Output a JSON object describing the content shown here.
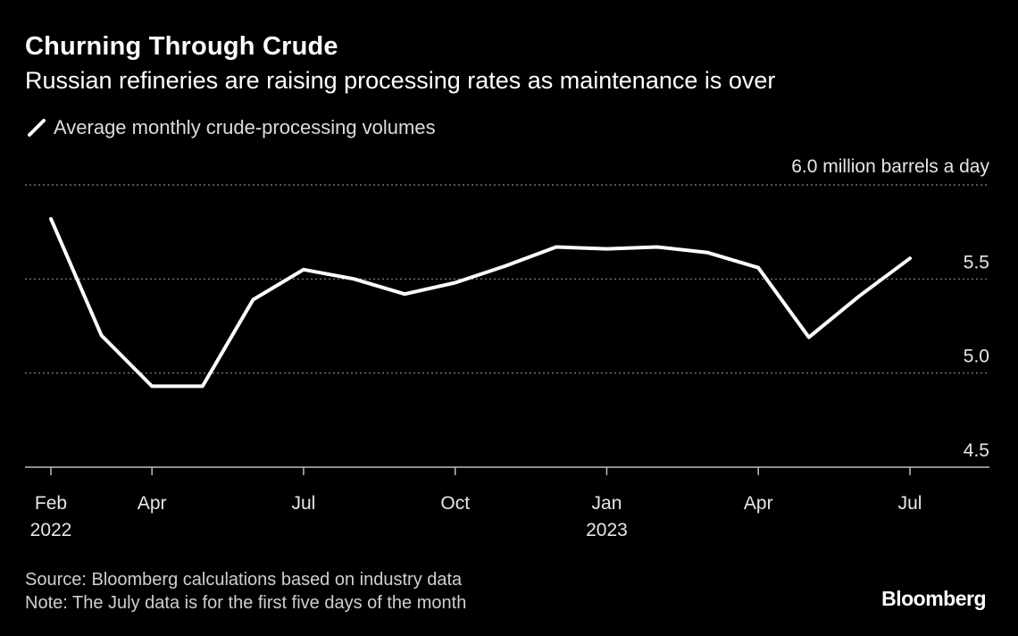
{
  "chart_data": {
    "type": "line",
    "title": "Churning Through Crude",
    "subtitle": "Russian refineries are raising processing rates as maintenance is over",
    "legend": {
      "label": "Average monthly crude-processing volumes",
      "placement": "top-left"
    },
    "y_unit_label": "million barrels a day",
    "ylim": [
      4.5,
      6.0
    ],
    "y_ticks": [
      4.5,
      5.0,
      5.5,
      6.0
    ],
    "y_tick_labels": [
      "4.5",
      "5.0",
      "5.5",
      "6.0"
    ],
    "grid": true,
    "series": [
      {
        "values": [
          5.82,
          5.2,
          4.93,
          4.93,
          5.39,
          5.55,
          5.5,
          5.42,
          5.48,
          5.57,
          5.67,
          5.66,
          5.67,
          5.64,
          5.56,
          5.19,
          5.41,
          5.61
        ],
        "color": "#ffffff"
      }
    ],
    "x": [
      "2022-02",
      "2022-03",
      "2022-04",
      "2022-05",
      "2022-06",
      "2022-07",
      "2022-08",
      "2022-09",
      "2022-10",
      "2022-11",
      "2022-12",
      "2023-01",
      "2023-02",
      "2023-03",
      "2023-04",
      "2023-05",
      "2023-06",
      "2023-07"
    ],
    "x_ticks": [
      {
        "label": "Feb",
        "year": "2022",
        "index": 0
      },
      {
        "label": "Apr",
        "year": "",
        "index": 2
      },
      {
        "label": "Jul",
        "year": "",
        "index": 5
      },
      {
        "label": "Oct",
        "year": "",
        "index": 8
      },
      {
        "label": "Jan",
        "year": "2023",
        "index": 11
      },
      {
        "label": "Apr",
        "year": "",
        "index": 14
      },
      {
        "label": "Jul",
        "year": "",
        "index": 17
      }
    ]
  },
  "footer": {
    "source": "Source: Bloomberg calculations based on industry data",
    "note": "Note: The July data is for the first five days of the month"
  },
  "brand": "Bloomberg",
  "colors": {
    "background": "#000000",
    "line": "#ffffff",
    "grid": "#8a8a8a"
  }
}
